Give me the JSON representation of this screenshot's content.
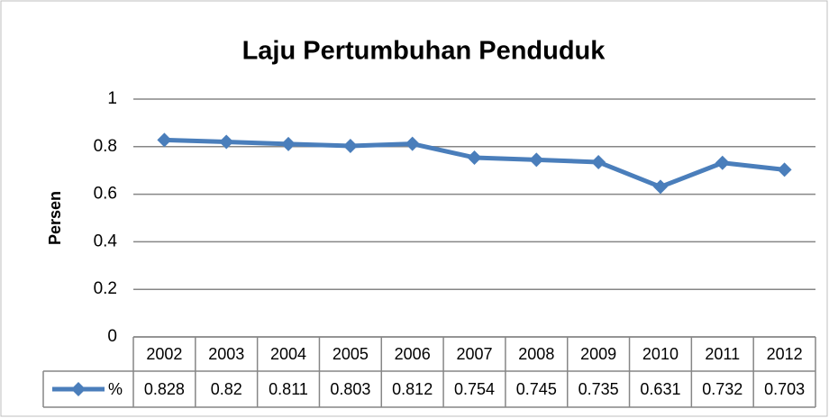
{
  "chart_data": {
    "type": "line",
    "title": "Laju Pertumbuhan Penduduk",
    "y_label": "Persen",
    "categories": [
      "2002",
      "2003",
      "2004",
      "2005",
      "2006",
      "2007",
      "2008",
      "2009",
      "2010",
      "2011",
      "2012"
    ],
    "series": [
      {
        "name": "%",
        "color": "#4a7ebb",
        "values": [
          0.828,
          0.82,
          0.811,
          0.803,
          0.812,
          0.754,
          0.745,
          0.735,
          0.631,
          0.732,
          0.703
        ]
      }
    ],
    "ylim": [
      0,
      1
    ],
    "yticks": [
      0,
      0.2,
      0.4,
      0.6,
      0.8,
      1
    ],
    "grid": true,
    "data_table": true
  }
}
